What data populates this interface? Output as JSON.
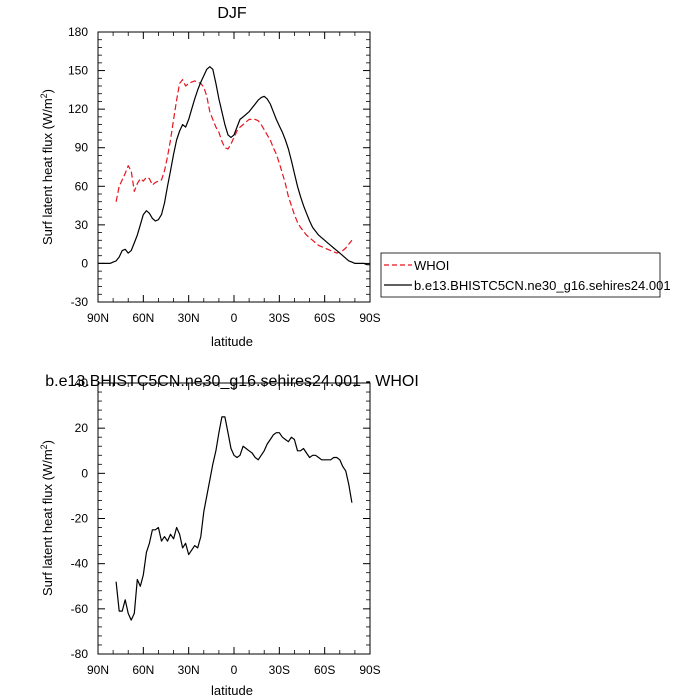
{
  "chart_data": [
    {
      "type": "line",
      "title": "DJF",
      "xlabel": "latitude",
      "ylabel": "Surf latent heat flux (W/m",
      "ylabel_sup": "2",
      "ylabel_end": ")",
      "x_ticks": [
        {
          "v": 90,
          "label": "90N"
        },
        {
          "v": 60,
          "label": "60N"
        },
        {
          "v": 30,
          "label": "30N"
        },
        {
          "v": 0,
          "label": "0"
        },
        {
          "v": -30,
          "label": "30S"
        },
        {
          "v": -60,
          "label": "60S"
        },
        {
          "v": -90,
          "label": "90S"
        }
      ],
      "y_ticks": [
        -30,
        0,
        30,
        60,
        90,
        120,
        150,
        180
      ],
      "xlim": [
        90,
        -90
      ],
      "ylim": [
        -30,
        180
      ],
      "legend": "outside-right",
      "series": [
        {
          "name": "WHOI",
          "color": "#e8141e",
          "dash": true,
          "x": [
            78,
            76,
            74,
            72,
            70,
            68,
            66,
            64,
            62,
            60,
            58,
            56,
            54,
            52,
            50,
            48,
            46,
            44,
            42,
            40,
            38,
            36,
            34,
            32,
            30,
            28,
            26,
            24,
            22,
            20,
            18,
            16,
            14,
            12,
            10,
            8,
            6,
            4,
            2,
            0,
            -2,
            -4,
            -6,
            -8,
            -10,
            -12,
            -14,
            -16,
            -18,
            -20,
            -22,
            -24,
            -26,
            -28,
            -30,
            -32,
            -34,
            -36,
            -38,
            -40,
            -42,
            -44,
            -46,
            -48,
            -50,
            -52,
            -54,
            -56,
            -58,
            -60,
            -62,
            -64,
            -66,
            -68,
            -70,
            -72,
            -74,
            -76,
            -78
          ],
          "y": [
            48,
            60,
            65,
            70,
            76,
            72,
            56,
            62,
            66,
            64,
            67,
            66,
            61,
            63,
            64,
            65,
            72,
            83,
            96,
            112,
            127,
            140,
            143,
            138,
            140,
            141,
            142,
            141,
            140,
            137,
            130,
            118,
            112,
            106,
            102,
            95,
            90,
            89,
            93,
            98,
            103,
            106,
            108,
            110,
            112,
            112,
            112,
            111,
            108,
            104,
            100,
            96,
            90,
            85,
            78,
            70,
            62,
            52,
            45,
            38,
            32,
            28,
            25,
            22,
            20,
            18,
            16,
            14,
            13,
            12,
            11,
            10,
            9,
            8,
            9,
            10,
            12,
            15,
            18
          ]
        },
        {
          "name": "b.e13.BHISTC5CN.ne30_g16.sehires24.001",
          "color": "#000000",
          "dash": false,
          "x": [
            90,
            88,
            86,
            84,
            82,
            80,
            78,
            76,
            74,
            72,
            70,
            68,
            66,
            64,
            62,
            60,
            58,
            56,
            54,
            52,
            50,
            48,
            46,
            44,
            42,
            40,
            38,
            36,
            34,
            32,
            30,
            28,
            26,
            24,
            22,
            20,
            18,
            16,
            14,
            12,
            10,
            8,
            6,
            4,
            2,
            0,
            -2,
            -4,
            -6,
            -8,
            -10,
            -12,
            -14,
            -16,
            -18,
            -20,
            -22,
            -24,
            -26,
            -28,
            -30,
            -32,
            -34,
            -36,
            -38,
            -40,
            -42,
            -44,
            -46,
            -48,
            -50,
            -52,
            -54,
            -56,
            -58,
            -60,
            -62,
            -64,
            -66,
            -68,
            -70,
            -72,
            -74,
            -76,
            -78,
            -80,
            -82,
            -84,
            -86,
            -88,
            -90
          ],
          "y": [
            0,
            0,
            0,
            0,
            0,
            1,
            2,
            5,
            10,
            11,
            8,
            10,
            16,
            22,
            30,
            38,
            41,
            39,
            35,
            33,
            34,
            38,
            47,
            60,
            72,
            85,
            96,
            103,
            108,
            106,
            112,
            120,
            128,
            135,
            141,
            146,
            151,
            153,
            151,
            140,
            128,
            118,
            108,
            100,
            98,
            100,
            106,
            112,
            114,
            116,
            118,
            121,
            124,
            127,
            129,
            130,
            128,
            124,
            118,
            112,
            107,
            102,
            96,
            89,
            80,
            70,
            60,
            52,
            45,
            39,
            33,
            28,
            25,
            22,
            20,
            18,
            16,
            14,
            12,
            10,
            8,
            6,
            4,
            2,
            1,
            0,
            0,
            0,
            0,
            -1,
            -1
          ]
        }
      ]
    },
    {
      "type": "line",
      "title": "b.e13.BHISTC5CN.ne30_g16.sehires24.001 - WHOI",
      "xlabel": "latitude",
      "ylabel": "Surf latent heat flux (W/m",
      "ylabel_sup": "2",
      "ylabel_end": ")",
      "x_ticks": [
        {
          "v": 90,
          "label": "90N"
        },
        {
          "v": 60,
          "label": "60N"
        },
        {
          "v": 30,
          "label": "30N"
        },
        {
          "v": 0,
          "label": "0"
        },
        {
          "v": -30,
          "label": "30S"
        },
        {
          "v": -60,
          "label": "60S"
        },
        {
          "v": -90,
          "label": "90S"
        }
      ],
      "y_ticks": [
        -80,
        -60,
        -40,
        -20,
        0,
        20,
        40
      ],
      "xlim": [
        90,
        -90
      ],
      "ylim": [
        -80,
        40
      ],
      "series": [
        {
          "color": "#000000",
          "dash": false,
          "x": [
            78,
            76,
            74,
            72,
            70,
            68,
            66,
            64,
            62,
            60,
            58,
            56,
            54,
            52,
            50,
            48,
            46,
            44,
            42,
            40,
            38,
            36,
            34,
            32,
            30,
            28,
            26,
            24,
            22,
            20,
            18,
            16,
            14,
            12,
            10,
            8,
            6,
            4,
            2,
            0,
            -2,
            -4,
            -6,
            -8,
            -10,
            -12,
            -14,
            -16,
            -18,
            -20,
            -22,
            -24,
            -26,
            -28,
            -30,
            -32,
            -34,
            -36,
            -38,
            -40,
            -42,
            -44,
            -46,
            -48,
            -50,
            -52,
            -54,
            -56,
            -58,
            -60,
            -62,
            -64,
            -66,
            -68,
            -70,
            -72,
            -74,
            -76,
            -78
          ],
          "y": [
            -48,
            -61,
            -61,
            -56,
            -62,
            -65,
            -62,
            -47,
            -50,
            -45,
            -35,
            -31,
            -25,
            -25,
            -24,
            -30,
            -28,
            -30,
            -27,
            -29,
            -24,
            -27,
            -33,
            -31,
            -36,
            -34,
            -32,
            -33,
            -28,
            -17,
            -10,
            -3,
            4,
            10,
            18,
            25,
            25,
            18,
            11,
            8,
            7,
            8,
            12,
            11,
            10,
            9,
            7,
            6,
            8,
            10,
            13,
            15,
            17,
            18,
            18,
            16,
            15,
            14,
            16,
            15,
            10,
            10,
            11,
            9,
            7,
            8,
            8,
            7,
            6,
            6,
            6,
            6,
            7,
            7,
            6,
            3,
            1,
            -5,
            -13
          ]
        }
      ]
    }
  ]
}
